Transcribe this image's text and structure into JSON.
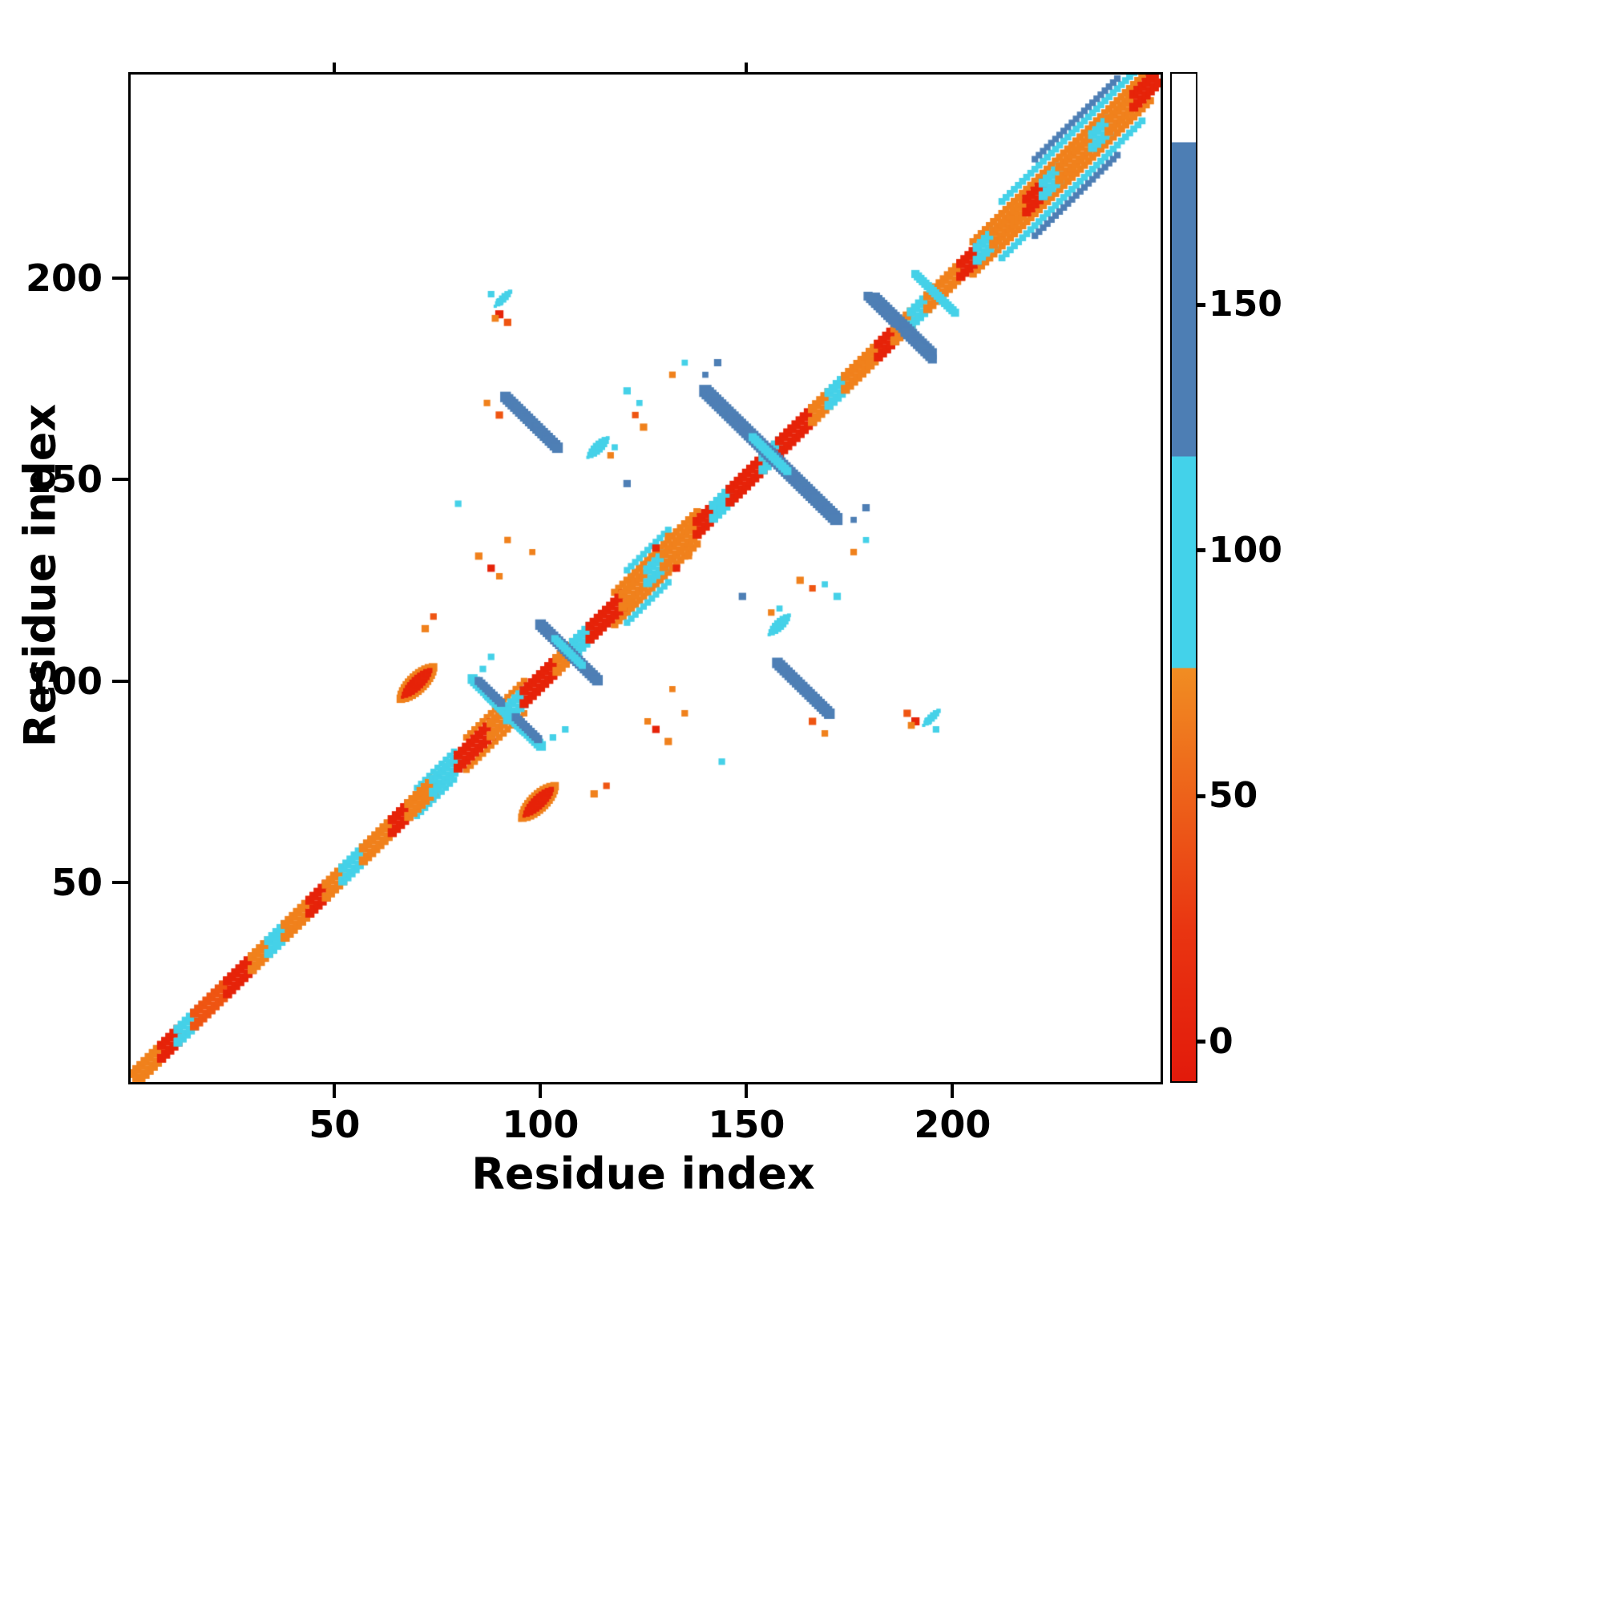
{
  "chart_data": {
    "type": "heatmap",
    "title": "",
    "xlabel": "Residue index",
    "ylabel": "Residue index",
    "xlim": [
      1,
      250
    ],
    "ylim": [
      1,
      250
    ],
    "x_ticks": [
      50,
      100,
      150,
      200
    ],
    "x_ticks_top": [
      50,
      150
    ],
    "y_ticks": [
      50,
      100,
      150,
      200
    ],
    "grid": false,
    "palette": {
      "red": "#e62309",
      "orangered": "#ef5512",
      "orange": "#f0811c",
      "cyan": "#45d1e8",
      "blue": "#4e7fb5",
      "white": "#ffffff"
    },
    "colorbar": {
      "ticks": [
        0,
        50,
        100,
        150
      ],
      "vmin": -8,
      "vmax": 197,
      "value_bands": {
        "red": [
          0,
          35
        ],
        "orangered": [
          35,
          55
        ],
        "orange": [
          55,
          77
        ],
        "cyan": [
          77,
          120
        ],
        "blue": [
          120,
          183
        ],
        "white": [
          183,
          197
        ]
      },
      "stops": [
        {
          "at": 0.0,
          "color": "#e21a0b"
        },
        {
          "at": 0.15,
          "color": "#e93511"
        },
        {
          "at": 0.41,
          "color": "#f18d22"
        },
        {
          "at": 0.41,
          "color": "#43d2ea"
        },
        {
          "at": 0.62,
          "color": "#43d2ea"
        },
        {
          "at": 0.62,
          "color": "#4d7eb4"
        },
        {
          "at": 0.932,
          "color": "#4d7eb4"
        },
        {
          "at": 0.932,
          "color": "#ffffff"
        },
        {
          "at": 1.0,
          "color": "#ffffff"
        }
      ]
    },
    "diagonal": {
      "band_offset": 1.6,
      "band_thickness": 2.2,
      "segments": [
        [
          1,
          8,
          "orange"
        ],
        [
          8,
          12,
          "red"
        ],
        [
          12,
          16,
          "cyan"
        ],
        [
          16,
          24,
          "orangered"
        ],
        [
          24,
          30,
          "red"
        ],
        [
          30,
          34,
          "orange"
        ],
        [
          34,
          38,
          "cyan"
        ],
        [
          38,
          44,
          "orange"
        ],
        [
          44,
          48,
          "red"
        ],
        [
          48,
          52,
          "orange"
        ],
        [
          52,
          57,
          "cyan"
        ],
        [
          57,
          64,
          "orange"
        ],
        [
          64,
          68,
          "red"
        ],
        [
          68,
          74,
          "orange"
        ],
        [
          74,
          80,
          "cyan"
        ],
        [
          80,
          88,
          "red"
        ],
        [
          88,
          92,
          "orange"
        ],
        [
          92,
          96,
          "cyan"
        ],
        [
          96,
          104,
          "red"
        ],
        [
          104,
          108,
          "orange"
        ],
        [
          108,
          112,
          "cyan"
        ],
        [
          112,
          120,
          "red"
        ],
        [
          120,
          126,
          "orange"
        ],
        [
          126,
          130,
          "cyan"
        ],
        [
          130,
          138,
          "orange"
        ],
        [
          138,
          142,
          "red"
        ],
        [
          142,
          146,
          "cyan"
        ],
        [
          146,
          154,
          "red"
        ],
        [
          154,
          158,
          "cyan"
        ],
        [
          158,
          166,
          "red"
        ],
        [
          166,
          170,
          "orange"
        ],
        [
          170,
          174,
          "cyan"
        ],
        [
          174,
          182,
          "orange"
        ],
        [
          182,
          186,
          "red"
        ],
        [
          186,
          190,
          "orange"
        ],
        [
          190,
          194,
          "cyan"
        ],
        [
          194,
          202,
          "orange"
        ],
        [
          202,
          206,
          "red"
        ],
        [
          206,
          210,
          "cyan"
        ],
        [
          210,
          218,
          "orange"
        ],
        [
          218,
          222,
          "red"
        ],
        [
          222,
          226,
          "cyan"
        ],
        [
          226,
          234,
          "orange"
        ],
        [
          234,
          238,
          "cyan"
        ],
        [
          238,
          244,
          "orange"
        ],
        [
          244,
          250,
          "red"
        ]
      ]
    },
    "parallel_bands": [
      [
        118,
        138,
        4,
        "orange",
        1.8
      ],
      [
        118,
        138,
        -4,
        "orange",
        1.8
      ],
      [
        121,
        131,
        6.5,
        "cyan",
        1.6
      ],
      [
        121,
        131,
        -6.5,
        "cyan",
        1.6
      ],
      [
        205,
        248,
        4,
        "orange",
        1.8
      ],
      [
        205,
        248,
        -4,
        "orange",
        1.8
      ],
      [
        212,
        246,
        7,
        "cyan",
        1.7
      ],
      [
        212,
        246,
        -7,
        "cyan",
        1.7
      ],
      [
        220,
        240,
        9.5,
        "blue",
        1.6
      ],
      [
        220,
        240,
        -9.5,
        "blue",
        1.6
      ],
      [
        82,
        96,
        4,
        "orange",
        1.6
      ],
      [
        82,
        96,
        -4,
        "orange",
        1.6
      ],
      [
        70,
        79,
        3.5,
        "cyan",
        1.5
      ],
      [
        70,
        79,
        -3.5,
        "cyan",
        1.5
      ]
    ],
    "anti_clusters": [
      [
        156,
        156,
        32,
        3,
        "blue"
      ],
      [
        156,
        156,
        9,
        2,
        "cyan"
      ],
      [
        107,
        107,
        14,
        2.6,
        "blue"
      ],
      [
        107,
        107,
        7,
        1.8,
        "cyan"
      ],
      [
        90,
        94,
        13,
        2.4,
        "cyan"
      ],
      [
        88,
        97,
        6,
        2,
        "blue"
      ],
      [
        188,
        188,
        14,
        2.8,
        "blue"
      ],
      [
        196,
        196,
        10,
        2,
        "cyan"
      ],
      [
        183,
        192,
        7,
        2.2,
        "blue"
      ],
      [
        98,
        164,
        13,
        2.6,
        "blue"
      ]
    ],
    "par_clusters": [
      [
        70,
        99.5,
        9,
        4.2,
        "orange"
      ],
      [
        70,
        99.5,
        7,
        2.8,
        "red"
      ],
      [
        114,
        158,
        5,
        2.4,
        "cyan"
      ],
      [
        195,
        91,
        4,
        1.8,
        "cyan"
      ]
    ],
    "dots": [
      [
        90,
        191,
        "red",
        2
      ],
      [
        92,
        189,
        "orangered",
        1.8
      ],
      [
        88,
        196,
        "cyan",
        1.6
      ],
      [
        194,
        90,
        "cyan",
        1.7
      ],
      [
        190,
        89,
        "orange",
        1.7
      ],
      [
        85,
        131,
        "orange",
        1.8
      ],
      [
        88,
        128,
        "red",
        1.8
      ],
      [
        90,
        126,
        "orange",
        1.6
      ],
      [
        72,
        113,
        "orange",
        1.8
      ],
      [
        74,
        116,
        "orangered",
        1.6
      ],
      [
        106,
        88,
        "cyan",
        1.6
      ],
      [
        103,
        86,
        "cyan",
        1.6
      ],
      [
        128,
        133,
        "red",
        1.8
      ],
      [
        131,
        136,
        "orange",
        1.6
      ],
      [
        149,
        121,
        "blue",
        1.8
      ],
      [
        143,
        179,
        "blue",
        1.8
      ],
      [
        163,
        125,
        "orange",
        1.8
      ],
      [
        166,
        123,
        "orangered",
        1.6
      ],
      [
        117,
        156,
        "orange",
        1.6
      ],
      [
        80,
        144,
        "cyan",
        1.6
      ],
      [
        90,
        166,
        "orangered",
        1.8
      ],
      [
        87,
        169,
        "orange",
        1.6
      ],
      [
        121,
        172,
        "cyan",
        1.8
      ],
      [
        124,
        169,
        "cyan",
        1.5
      ],
      [
        135,
        92,
        "orange",
        1.6
      ],
      [
        176,
        140,
        "blue",
        1.5
      ],
      [
        132,
        176,
        "orange",
        1.6
      ],
      [
        135,
        179,
        "cyan",
        1.5
      ],
      [
        158,
        118,
        "cyan",
        1.5
      ],
      [
        98,
        132,
        "orange",
        1.5
      ]
    ]
  }
}
